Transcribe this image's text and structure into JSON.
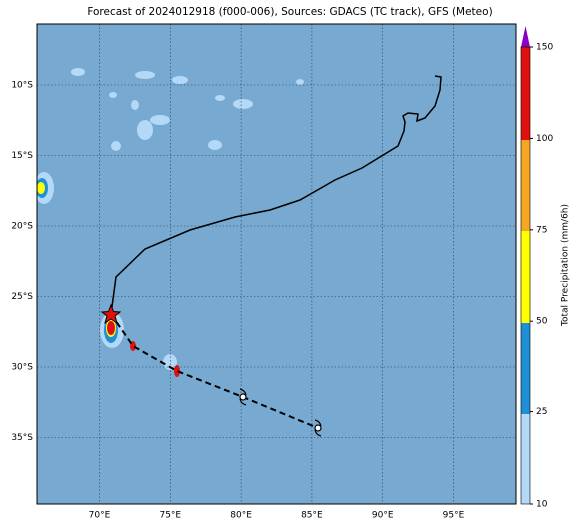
{
  "map": {
    "title": "Forecast of 2024012918 (f000-006), Sources: GDACS (TC track), GFS (Meteo)",
    "lon_labels": [
      "70°E",
      "75°E",
      "80°E",
      "85°E",
      "90°E",
      "95°E"
    ],
    "lat_labels": [
      "10°S",
      "15°S",
      "20°S",
      "25°S",
      "30°S",
      "35°S"
    ]
  },
  "colorbar": {
    "label": "Total Precipitation (mm/6h)",
    "ticks": [
      10,
      25,
      50,
      75,
      100,
      150
    ]
  }
}
